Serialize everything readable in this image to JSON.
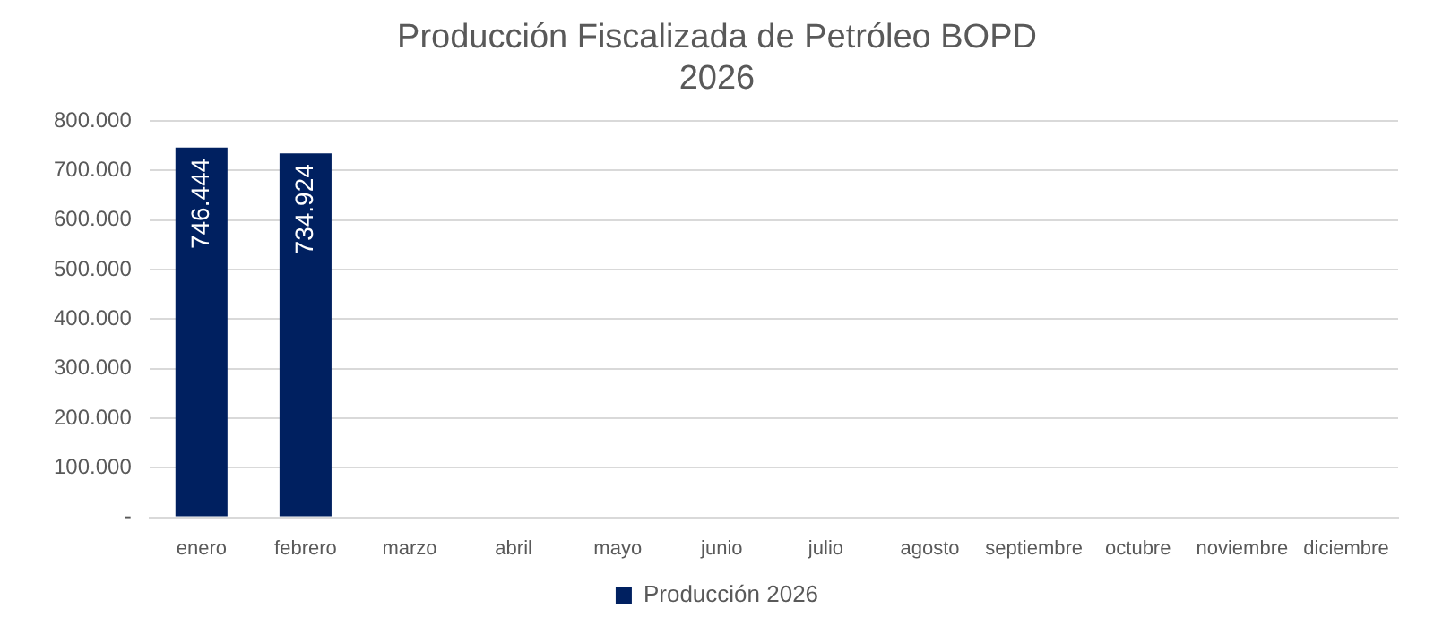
{
  "chart_data": {
    "type": "bar",
    "title": "Producción Fiscalizada de Petróleo BOPD\n2026",
    "categories": [
      "enero",
      "febrero",
      "marzo",
      "abril",
      "mayo",
      "junio",
      "julio",
      "agosto",
      "septiembre",
      "octubre",
      "noviembre",
      "diciembre"
    ],
    "series": [
      {
        "name": "Producción 2026",
        "color": "#002060",
        "values": [
          746444,
          734924,
          null,
          null,
          null,
          null,
          null,
          null,
          null,
          null,
          null,
          null
        ],
        "value_labels": [
          "746.444",
          "734.924",
          null,
          null,
          null,
          null,
          null,
          null,
          null,
          null,
          null,
          null
        ]
      }
    ],
    "ylim": [
      0,
      800000
    ],
    "yticks": [
      {
        "value": 0,
        "label": "-"
      },
      {
        "value": 100000,
        "label": "100.000"
      },
      {
        "value": 200000,
        "label": "200.000"
      },
      {
        "value": 300000,
        "label": "300.000"
      },
      {
        "value": 400000,
        "label": "400.000"
      },
      {
        "value": 500000,
        "label": "500.000"
      },
      {
        "value": 600000,
        "label": "600.000"
      },
      {
        "value": 700000,
        "label": "700.000"
      },
      {
        "value": 800000,
        "label": "800.000"
      }
    ],
    "grid": "y",
    "legend": "bottom"
  }
}
